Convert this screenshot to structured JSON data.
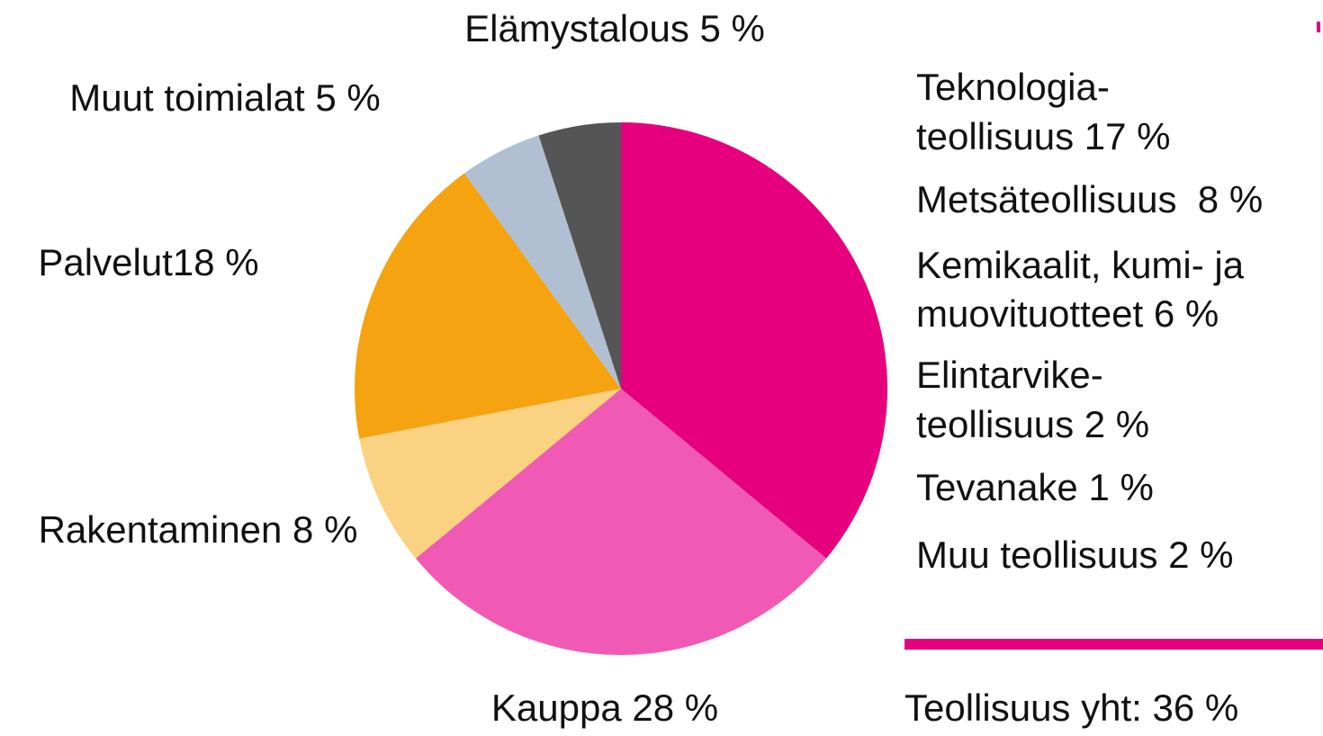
{
  "chart_data": {
    "type": "pie",
    "categories": [
      "Teollisuus yht: 36 %",
      "Kauppa 28 %",
      "Rakentaminen 8 %",
      "Palvelut18 %",
      "Muut toimialat 5 %",
      "Elämystalous 5 %"
    ],
    "values": [
      36,
      28,
      8,
      18,
      5,
      5
    ],
    "colors": [
      "#e6007e",
      "#f05ab4",
      "#fad282",
      "#f5a310",
      "#b1bfd3",
      "#555555"
    ],
    "breakdown": [
      [
        "Teknologia-",
        "teollisuus 17 %"
      ],
      [
        "Metsäteollisuus  8 %"
      ],
      [
        "Kemikaalit, kumi- ja",
        "muovituotteet 6 %"
      ],
      [
        "Elintarvike-",
        "teollisuus 2 %"
      ],
      [
        "Tevanake 1 %"
      ],
      [
        "Muu teollisuus 2 %"
      ]
    ]
  }
}
